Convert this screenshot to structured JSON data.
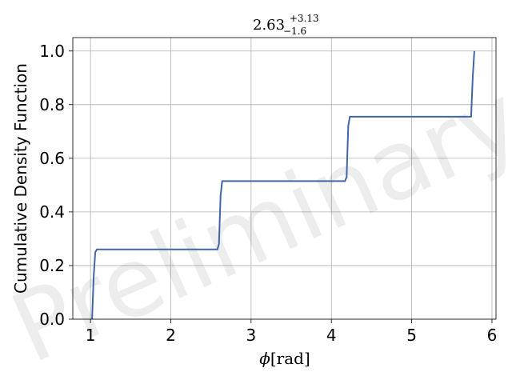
{
  "chart_data": {
    "type": "line",
    "title": {
      "base": "2.63",
      "sup": "+3.13",
      "sub": "−1.6"
    },
    "xlabel": {
      "symbol": "ϕ",
      "unit": "[rad]"
    },
    "ylabel": "Cumulative Density Function",
    "xlim": [
      0.78,
      6.05
    ],
    "ylim": [
      0.0,
      1.05
    ],
    "xticks": [
      1,
      2,
      3,
      4,
      5,
      6
    ],
    "yticks": [
      0.0,
      0.2,
      0.4,
      0.6,
      0.8,
      1.0
    ],
    "ytick_labels": [
      "0.0",
      "0.2",
      "0.4",
      "0.6",
      "0.8",
      "1.0"
    ],
    "grid": true,
    "watermark": "Preliminary",
    "series": [
      {
        "color": "#4266a8",
        "x": [
          1.02,
          1.04,
          1.06,
          1.08,
          2.58,
          2.6,
          2.62,
          2.64,
          4.17,
          4.19,
          4.21,
          4.23,
          5.74,
          5.76,
          5.78
        ],
        "y": [
          0.0,
          0.16,
          0.25,
          0.26,
          0.26,
          0.28,
          0.46,
          0.515,
          0.515,
          0.53,
          0.72,
          0.755,
          0.755,
          0.9,
          1.0
        ]
      }
    ]
  }
}
